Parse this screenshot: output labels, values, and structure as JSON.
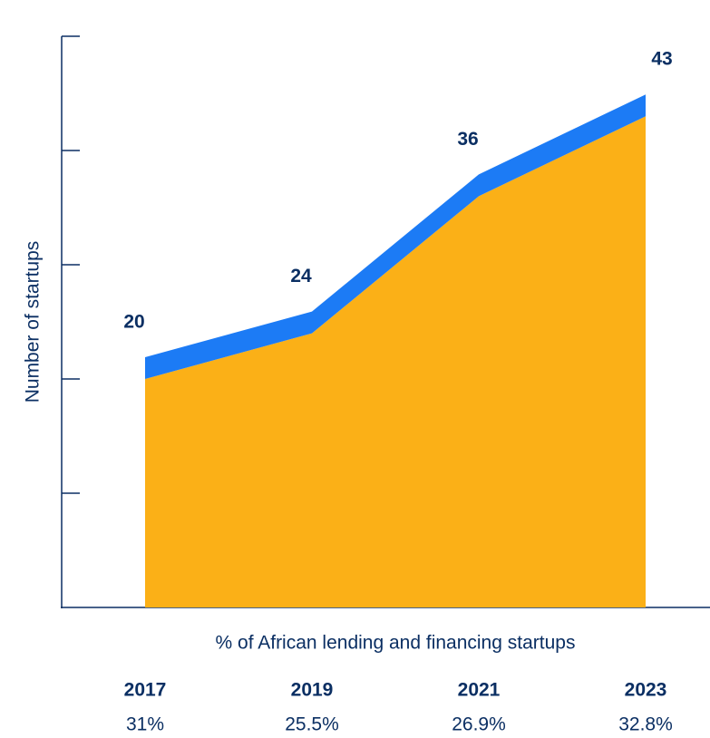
{
  "chart_data": {
    "type": "area",
    "y_label": "Number of startups",
    "x_label": "% of African lending and financing startups",
    "categories": [
      "2017",
      "2019",
      "2021",
      "2023"
    ],
    "values": [
      20,
      24,
      36,
      43
    ],
    "color": "#fbb017",
    "edge_color": "#1c7bf5",
    "ylim": [
      0,
      50
    ],
    "yticks": [
      0,
      10,
      20,
      30,
      40,
      50
    ],
    "shares": {
      "values": [
        31,
        25.5,
        26.9,
        32.8
      ],
      "value_labels": [
        "31%",
        "25.5%",
        "26.9%",
        "32.8%"
      ]
    }
  }
}
